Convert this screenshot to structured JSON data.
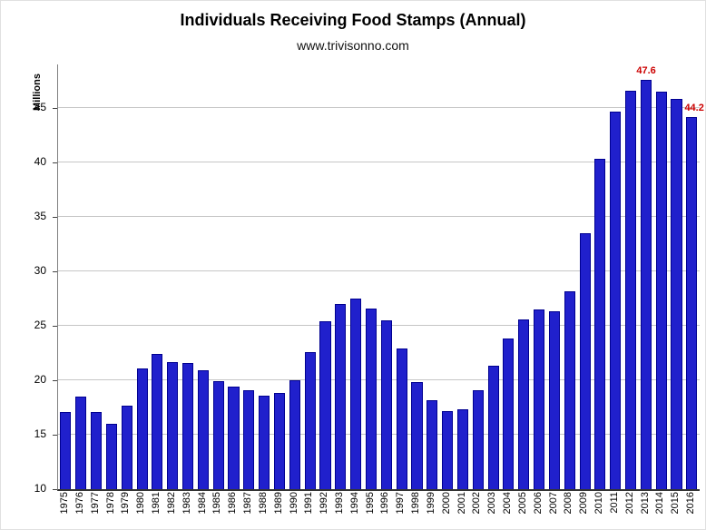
{
  "title": "Individuals Receiving Food Stamps (Annual)",
  "subtitle": "www.trivisonno.com",
  "chart_data": {
    "type": "bar",
    "title": "Individuals Receiving Food Stamps (Annual)",
    "subtitle": "www.trivisonno.com",
    "ylabel": "Millions",
    "xlabel": "",
    "ylim": [
      10,
      49
    ],
    "yticks": [
      10,
      15,
      20,
      25,
      30,
      35,
      40,
      45
    ],
    "grid": true,
    "bar_color": "#2020cc",
    "grid_color": "#c6c6c6",
    "annotation_color": "#cc0000",
    "categories": [
      "1975",
      "1976",
      "1977",
      "1978",
      "1979",
      "1980",
      "1981",
      "1982",
      "1983",
      "1984",
      "1985",
      "1986",
      "1987",
      "1988",
      "1989",
      "1990",
      "1991",
      "1992",
      "1993",
      "1994",
      "1995",
      "1996",
      "1997",
      "1998",
      "1999",
      "2000",
      "2001",
      "2002",
      "2003",
      "2004",
      "2005",
      "2006",
      "2007",
      "2008",
      "2009",
      "2010",
      "2011",
      "2012",
      "2013",
      "2014",
      "2015",
      "2016"
    ],
    "values": [
      17.1,
      18.5,
      17.1,
      16.0,
      17.7,
      21.1,
      22.4,
      21.7,
      21.6,
      20.9,
      19.9,
      19.4,
      19.1,
      18.6,
      18.8,
      20.0,
      22.6,
      25.4,
      27.0,
      27.5,
      26.6,
      25.5,
      22.9,
      19.8,
      18.2,
      17.2,
      17.3,
      19.1,
      21.3,
      23.8,
      25.6,
      26.5,
      26.3,
      28.2,
      33.5,
      40.3,
      44.7,
      46.6,
      47.6,
      46.5,
      45.8,
      44.2
    ],
    "annotations": [
      {
        "category": "2013",
        "text": "47.6",
        "placement": "above"
      },
      {
        "category": "2016",
        "text": "44.2",
        "placement": "above-right"
      }
    ]
  }
}
